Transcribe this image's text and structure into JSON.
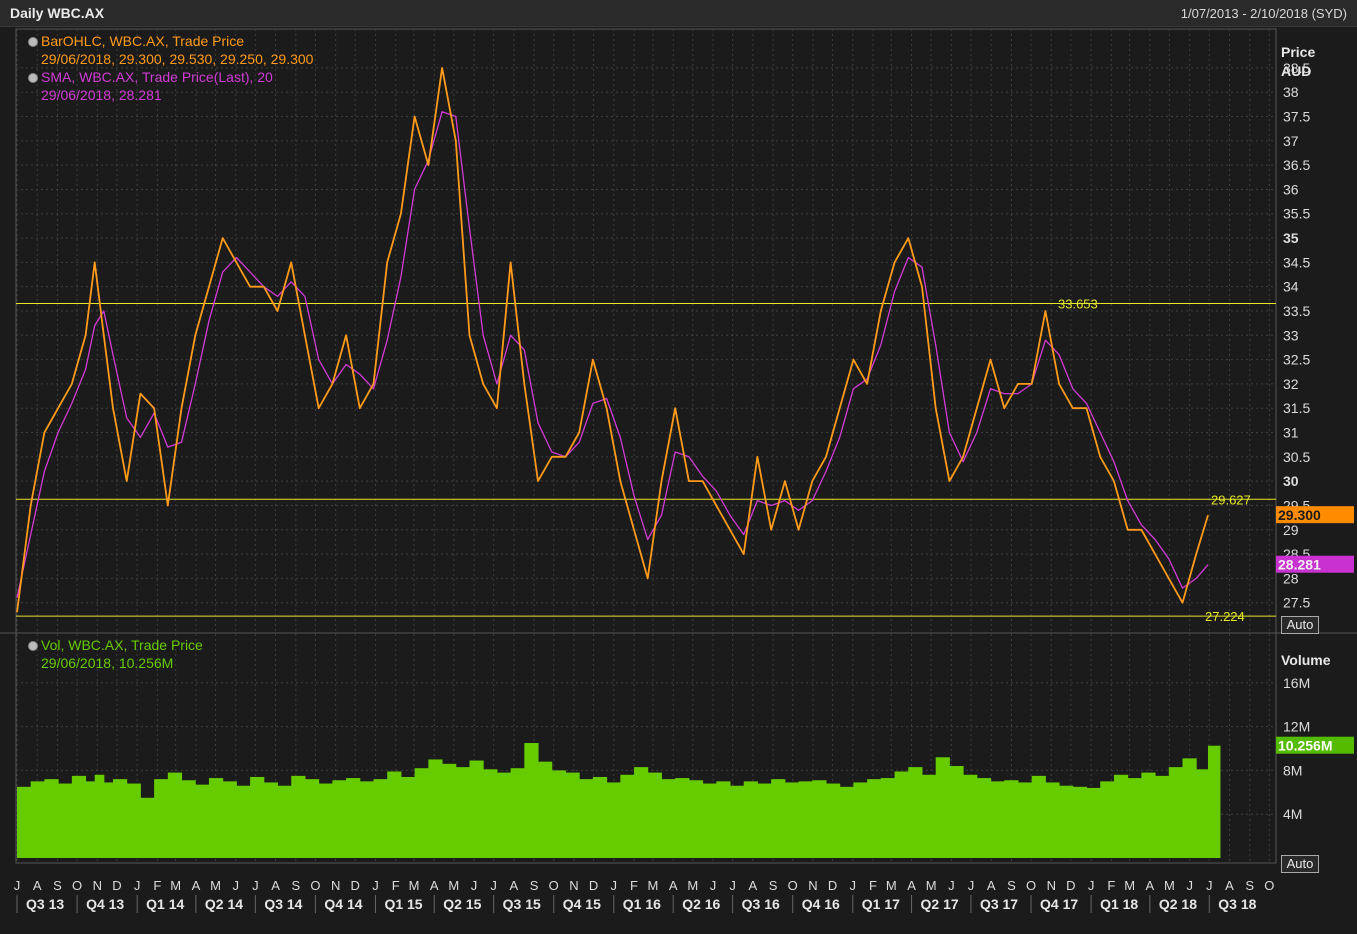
{
  "window": {
    "title": "Daily WBC.AX",
    "date_range": "1/07/2013 - 2/10/2018 (SYD)"
  },
  "legend_price": {
    "bar_title": "BarOHLC, WBC.AX, Trade Price",
    "bar_values": "29/06/2018, 29.300, 29.530, 29.250, 29.300",
    "sma_title": "SMA, WBC.AX, Trade Price(Last),  20",
    "sma_values": "29/06/2018, 28.281"
  },
  "legend_volume": {
    "title": "Vol, WBC.AX, Trade Price",
    "values": "29/06/2018, 10.256M"
  },
  "price_axis": {
    "header_line1": "Price",
    "header_line2": "AUD",
    "ticks": [
      "38.5",
      "38",
      "37.5",
      "37",
      "36.5",
      "36",
      "35.5",
      "35",
      "34.5",
      "34",
      "33.5",
      "33",
      "32.5",
      "32",
      "31.5",
      "31",
      "30.5",
      "30",
      "29.5",
      "29",
      "28.5",
      "28",
      "27.5"
    ],
    "last_price_badge": "29.300",
    "sma_badge": "28.281",
    "auto_label": "Auto"
  },
  "volume_axis": {
    "header": "Volume",
    "ticks": [
      "16M",
      "12M",
      "8M",
      "4M"
    ],
    "last_volume_badge": "10.256M",
    "auto_label": "Auto"
  },
  "hlines": [
    {
      "label": "33.653"
    },
    {
      "label": "29.627"
    },
    {
      "label": "27.224"
    }
  ],
  "colors": {
    "background": "#1b1b1b",
    "price": "#ff9a1a",
    "sma": "#d23ad6",
    "volume": "#66cc00",
    "hline": "#e6e62a",
    "grid": "#3e3e3e"
  },
  "chart_data": {
    "type": "bar",
    "title": "Daily WBC.AX",
    "x_start": "2013-07-01",
    "x_end": "2018-10-02",
    "price_ylim": [
      27,
      39.3
    ],
    "volume_ylim": [
      0,
      20000000
    ],
    "month_ticks": [
      "J",
      "A",
      "S",
      "O",
      "N",
      "D",
      "J",
      "F",
      "M",
      "A",
      "M",
      "J",
      "J",
      "A",
      "S",
      "O",
      "N",
      "D",
      "J",
      "F",
      "M",
      "A",
      "M",
      "J",
      "J",
      "A",
      "S",
      "O",
      "N",
      "D",
      "J",
      "F",
      "M",
      "A",
      "M",
      "J",
      "J",
      "A",
      "S",
      "O",
      "N",
      "D",
      "J",
      "F",
      "M",
      "A",
      "M",
      "J",
      "J",
      "A",
      "S",
      "O",
      "N",
      "D",
      "J",
      "F",
      "M",
      "A",
      "M",
      "J",
      "J",
      "A",
      "S",
      "O"
    ],
    "quarter_ticks": [
      "Q3 13",
      "Q4 13",
      "Q1 14",
      "Q2 14",
      "Q3 14",
      "Q4 14",
      "Q1 15",
      "Q2 15",
      "Q3 15",
      "Q4 15",
      "Q1 16",
      "Q2 16",
      "Q3 16",
      "Q4 16",
      "Q1 17",
      "Q2 17",
      "Q3 17",
      "Q4 17",
      "Q1 18",
      "Q2 18",
      "Q3 18"
    ],
    "horizontal_lines": [
      33.653,
      29.627,
      27.224
    ],
    "series": [
      {
        "name": "BarOHLC, WBC.AX, Trade Price",
        "x": [
          "2013-07-01",
          "2013-07-22",
          "2013-08-12",
          "2013-09-02",
          "2013-09-23",
          "2013-10-14",
          "2013-10-28",
          "2013-11-11",
          "2013-11-25",
          "2013-12-16",
          "2014-01-06",
          "2014-01-27",
          "2014-02-17",
          "2014-03-10",
          "2014-03-31",
          "2014-04-21",
          "2014-05-12",
          "2014-06-02",
          "2014-06-23",
          "2014-07-14",
          "2014-08-04",
          "2014-08-25",
          "2014-09-15",
          "2014-10-06",
          "2014-10-27",
          "2014-11-17",
          "2014-12-08",
          "2014-12-29",
          "2015-01-19",
          "2015-02-09",
          "2015-03-02",
          "2015-03-23",
          "2015-04-13",
          "2015-05-04",
          "2015-05-25",
          "2015-06-15",
          "2015-07-06",
          "2015-07-27",
          "2015-08-17",
          "2015-09-07",
          "2015-09-28",
          "2015-10-19",
          "2015-11-09",
          "2015-11-30",
          "2015-12-21",
          "2016-01-11",
          "2016-02-01",
          "2016-02-22",
          "2016-03-14",
          "2016-04-04",
          "2016-04-25",
          "2016-05-16",
          "2016-06-06",
          "2016-06-27",
          "2016-07-18",
          "2016-08-08",
          "2016-08-29",
          "2016-09-19",
          "2016-10-10",
          "2016-10-31",
          "2016-11-21",
          "2016-12-12",
          "2017-01-02",
          "2017-01-23",
          "2017-02-13",
          "2017-03-06",
          "2017-03-27",
          "2017-04-17",
          "2017-05-08",
          "2017-05-29",
          "2017-06-19",
          "2017-07-10",
          "2017-07-31",
          "2017-08-21",
          "2017-09-11",
          "2017-10-02",
          "2017-10-23",
          "2017-11-13",
          "2017-12-04",
          "2017-12-25",
          "2018-01-15",
          "2018-02-05",
          "2018-02-26",
          "2018-03-19",
          "2018-04-09",
          "2018-04-30",
          "2018-05-21",
          "2018-06-11",
          "2018-06-29"
        ],
        "values": [
          27.3,
          29.5,
          31.0,
          31.5,
          32.0,
          33.0,
          34.5,
          33.0,
          31.5,
          30.0,
          31.8,
          31.5,
          29.5,
          31.5,
          33.0,
          34.0,
          35.0,
          34.5,
          34.0,
          34.0,
          33.5,
          34.5,
          33.0,
          31.5,
          32.0,
          33.0,
          31.5,
          32.0,
          34.5,
          35.5,
          37.5,
          36.5,
          38.5,
          37.0,
          33.0,
          32.0,
          31.5,
          34.5,
          32.0,
          30.0,
          30.5,
          30.5,
          31.0,
          32.5,
          31.5,
          30.0,
          29.0,
          28.0,
          30.0,
          31.5,
          30.0,
          30.0,
          29.5,
          29.0,
          28.5,
          30.5,
          29.0,
          30.0,
          29.0,
          30.0,
          30.5,
          31.5,
          32.5,
          32.0,
          33.5,
          34.5,
          35.0,
          34.0,
          31.5,
          30.0,
          30.5,
          31.5,
          32.5,
          31.5,
          32.0,
          32.0,
          33.5,
          32.0,
          31.5,
          31.5,
          30.5,
          30.0,
          29.0,
          29.0,
          28.5,
          28.0,
          27.5,
          28.5,
          29.3
        ]
      },
      {
        "name": "SMA, WBC.AX, Trade Price(Last),  20",
        "values": [
          27.6,
          28.9,
          30.2,
          31.0,
          31.6,
          32.3,
          33.2,
          33.5,
          32.6,
          31.3,
          30.9,
          31.4,
          30.7,
          30.8,
          32.0,
          33.3,
          34.3,
          34.6,
          34.3,
          34.0,
          33.8,
          34.1,
          33.8,
          32.5,
          32.0,
          32.4,
          32.2,
          31.9,
          32.9,
          34.2,
          36.0,
          36.6,
          37.6,
          37.5,
          35.2,
          33.0,
          32.0,
          33.0,
          32.7,
          31.2,
          30.6,
          30.5,
          30.8,
          31.6,
          31.7,
          30.9,
          29.7,
          28.8,
          29.3,
          30.6,
          30.5,
          30.1,
          29.8,
          29.3,
          28.9,
          29.6,
          29.5,
          29.6,
          29.4,
          29.6,
          30.2,
          30.9,
          31.9,
          32.1,
          32.8,
          33.9,
          34.6,
          34.4,
          32.8,
          31.0,
          30.4,
          31.0,
          31.9,
          31.8,
          31.8,
          32.0,
          32.9,
          32.6,
          31.9,
          31.6,
          31.0,
          30.4,
          29.6,
          29.1,
          28.8,
          28.4,
          27.8,
          28.0,
          28.281
        ]
      },
      {
        "name": "Vol, WBC.AX, Trade Price",
        "values": [
          6500000,
          7000000,
          7200000,
          6800000,
          7500000,
          7000000,
          7600000,
          6900000,
          7200000,
          6800000,
          5500000,
          7200000,
          7800000,
          7100000,
          6700000,
          7300000,
          7000000,
          6600000,
          7400000,
          6900000,
          6600000,
          7500000,
          7200000,
          6800000,
          7100000,
          7300000,
          7000000,
          7200000,
          7900000,
          7400000,
          8200000,
          9000000,
          8600000,
          8300000,
          8900000,
          8100000,
          7800000,
          8200000,
          10500000,
          8800000,
          8000000,
          7800000,
          7200000,
          7400000,
          6900000,
          7600000,
          8300000,
          7800000,
          7200000,
          7300000,
          7100000,
          6800000,
          7000000,
          6600000,
          7000000,
          6800000,
          7200000,
          6900000,
          7000000,
          7100000,
          6800000,
          6500000,
          6900000,
          7200000,
          7300000,
          7900000,
          8300000,
          7600000,
          9200000,
          8400000,
          7600000,
          7300000,
          7000000,
          7100000,
          6900000,
          7500000,
          6900000,
          6600000,
          6500000,
          6400000,
          7000000,
          7600000,
          7300000,
          7800000,
          7500000,
          8300000,
          9100000,
          8100000,
          10256000
        ]
      }
    ]
  }
}
